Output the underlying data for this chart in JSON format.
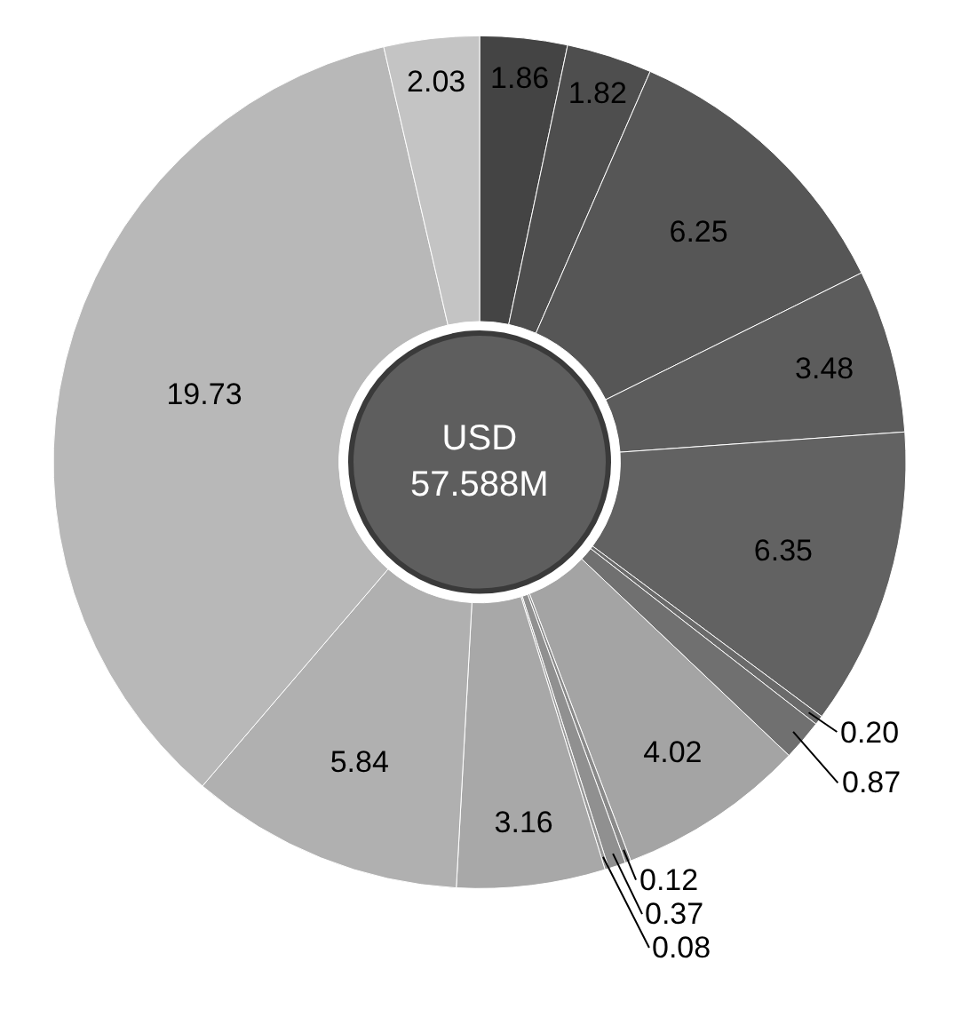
{
  "chart_data": {
    "type": "donut",
    "categories": [
      null,
      null,
      null,
      null,
      null,
      null,
      null,
      null,
      null,
      null,
      null,
      null,
      null,
      null,
      null
    ],
    "values": [
      1.86,
      1.82,
      6.25,
      3.48,
      6.35,
      0.2,
      0.87,
      4.02,
      0.12,
      0.37,
      0.08,
      3.16,
      5.84,
      19.73,
      2.03
    ],
    "value_labels": [
      "1.86",
      "1.82",
      "6.25",
      "3.48",
      "6.35",
      "0.20",
      "0.87",
      "4.02",
      "0.12",
      "0.37",
      "0.08",
      "3.16",
      "5.84",
      "19.73",
      "2.03"
    ],
    "colors": [
      "#444444",
      "#4e4e4e",
      "#565656",
      "#5c5c5c",
      "#626262",
      "#6a6a6a",
      "#707070",
      "#a4a4a4",
      "#8a8a8a",
      "#909090",
      "#989898",
      "#a8a8a8",
      "#b0b0b0",
      "#b8b8b8",
      "#c4c4c4"
    ],
    "annotations": [
      "USD\n57.588M"
    ],
    "legend": false
  }
}
